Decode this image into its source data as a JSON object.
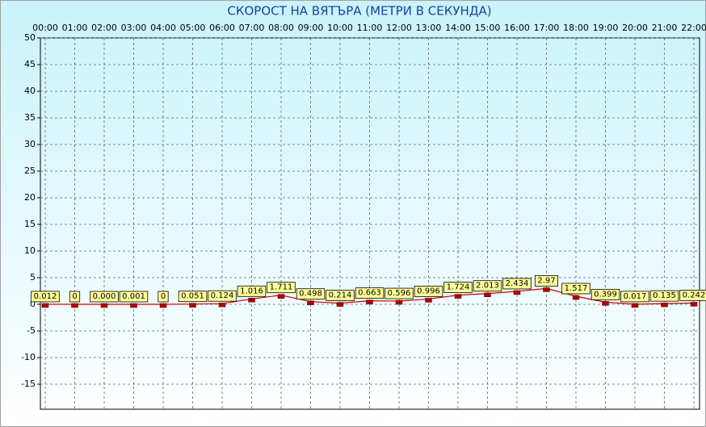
{
  "chart_data": {
    "type": "line",
    "title": "СКОРОСТ НА ВЯТЪРА (МЕТРИ В СЕКУНДА)",
    "categories": [
      "00:00",
      "01:00",
      "02:00",
      "03:00",
      "04:00",
      "05:00",
      "06:00",
      "07:00",
      "08:00",
      "09:00",
      "10:00",
      "11:00",
      "12:00",
      "13:00",
      "14:00",
      "15:00",
      "16:00",
      "17:00",
      "18:00",
      "19:00",
      "20:00",
      "21:00",
      "22:00"
    ],
    "series": [
      {
        "color": "#cc0000",
        "values": [
          0.012,
          0,
          0,
          0.001,
          0,
          0.051,
          0.124,
          1.016,
          1.711,
          0.498,
          0.214,
          0.663,
          0.596,
          0.996,
          1.724,
          2.013,
          2.434,
          2.97,
          1.517,
          0.399,
          0.017,
          0.135,
          0.242
        ],
        "value_labels": [
          "0.012",
          "0",
          "0.000",
          "0.001",
          "0",
          "0.051",
          "0.124",
          "1.016",
          "1.711",
          "0.498",
          "0.214",
          "0.663",
          "0.596",
          "0.996",
          "1.724",
          "2.013",
          "2.434",
          "2.97",
          "1.517",
          "0.399",
          "0.017",
          "0.135",
          "0.242"
        ]
      }
    ],
    "ylim": [
      -20,
      50
    ],
    "yticks": [
      50,
      45,
      40,
      35,
      30,
      25,
      20,
      15,
      10,
      5,
      0,
      -5,
      -10,
      -15
    ],
    "grid": true
  }
}
